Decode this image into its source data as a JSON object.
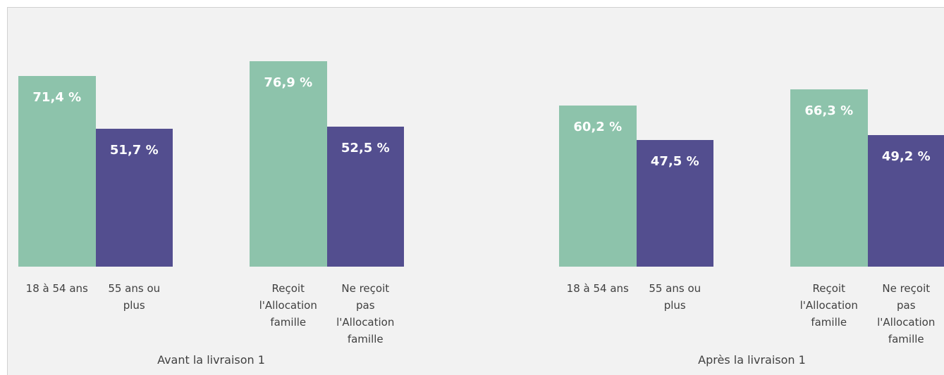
{
  "chart_data": {
    "type": "bar",
    "groups": [
      "Avant la livraison 1",
      "Après la livraison 1"
    ],
    "categories": [
      "18 à 54 ans",
      "55 ans ou plus",
      "Reçoit l'Allocation famille",
      "Ne reçoit pas l'Allocation famille",
      "18 à 54 ans",
      "55 ans ou plus",
      "Reçoit l'Allocation famille",
      "Ne reçoit pas l'Allocation famille"
    ],
    "values": [
      71.4,
      51.7,
      76.9,
      52.5,
      60.2,
      47.5,
      66.3,
      49.2
    ],
    "value_labels": [
      "71,4 %",
      "51,7 %",
      "76,9 %",
      "52,5 %",
      "60,2 %",
      "47,5 %",
      "66,3 %",
      "49,2 %"
    ],
    "colors": [
      "#8dc3ab",
      "#534e8f"
    ]
  }
}
